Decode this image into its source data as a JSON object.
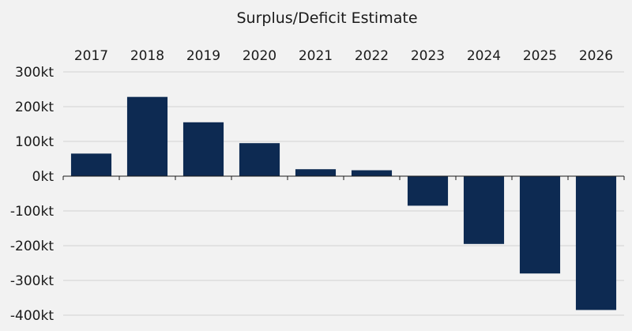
{
  "chart_data": {
    "type": "bar",
    "title": "Surplus/Deficit Estimate",
    "categories": [
      "2017",
      "2018",
      "2019",
      "2020",
      "2021",
      "2022",
      "2023",
      "2024",
      "2025",
      "2026"
    ],
    "values": [
      65,
      228,
      155,
      95,
      20,
      17,
      -85,
      -195,
      -280,
      -385
    ],
    "unit": "kt",
    "ylim": [
      -400,
      300
    ],
    "yticks": [
      300,
      200,
      100,
      0,
      -100,
      -200,
      -300,
      -400
    ],
    "ytick_labels": [
      "300kt",
      "200kt",
      "100kt",
      "0kt",
      "-100kt",
      "-200kt",
      "-300kt",
      "-400kt"
    ],
    "xlabel": "",
    "ylabel": "",
    "grid": true,
    "x_tick_position": "top",
    "bar_color": "#0d2a52"
  }
}
